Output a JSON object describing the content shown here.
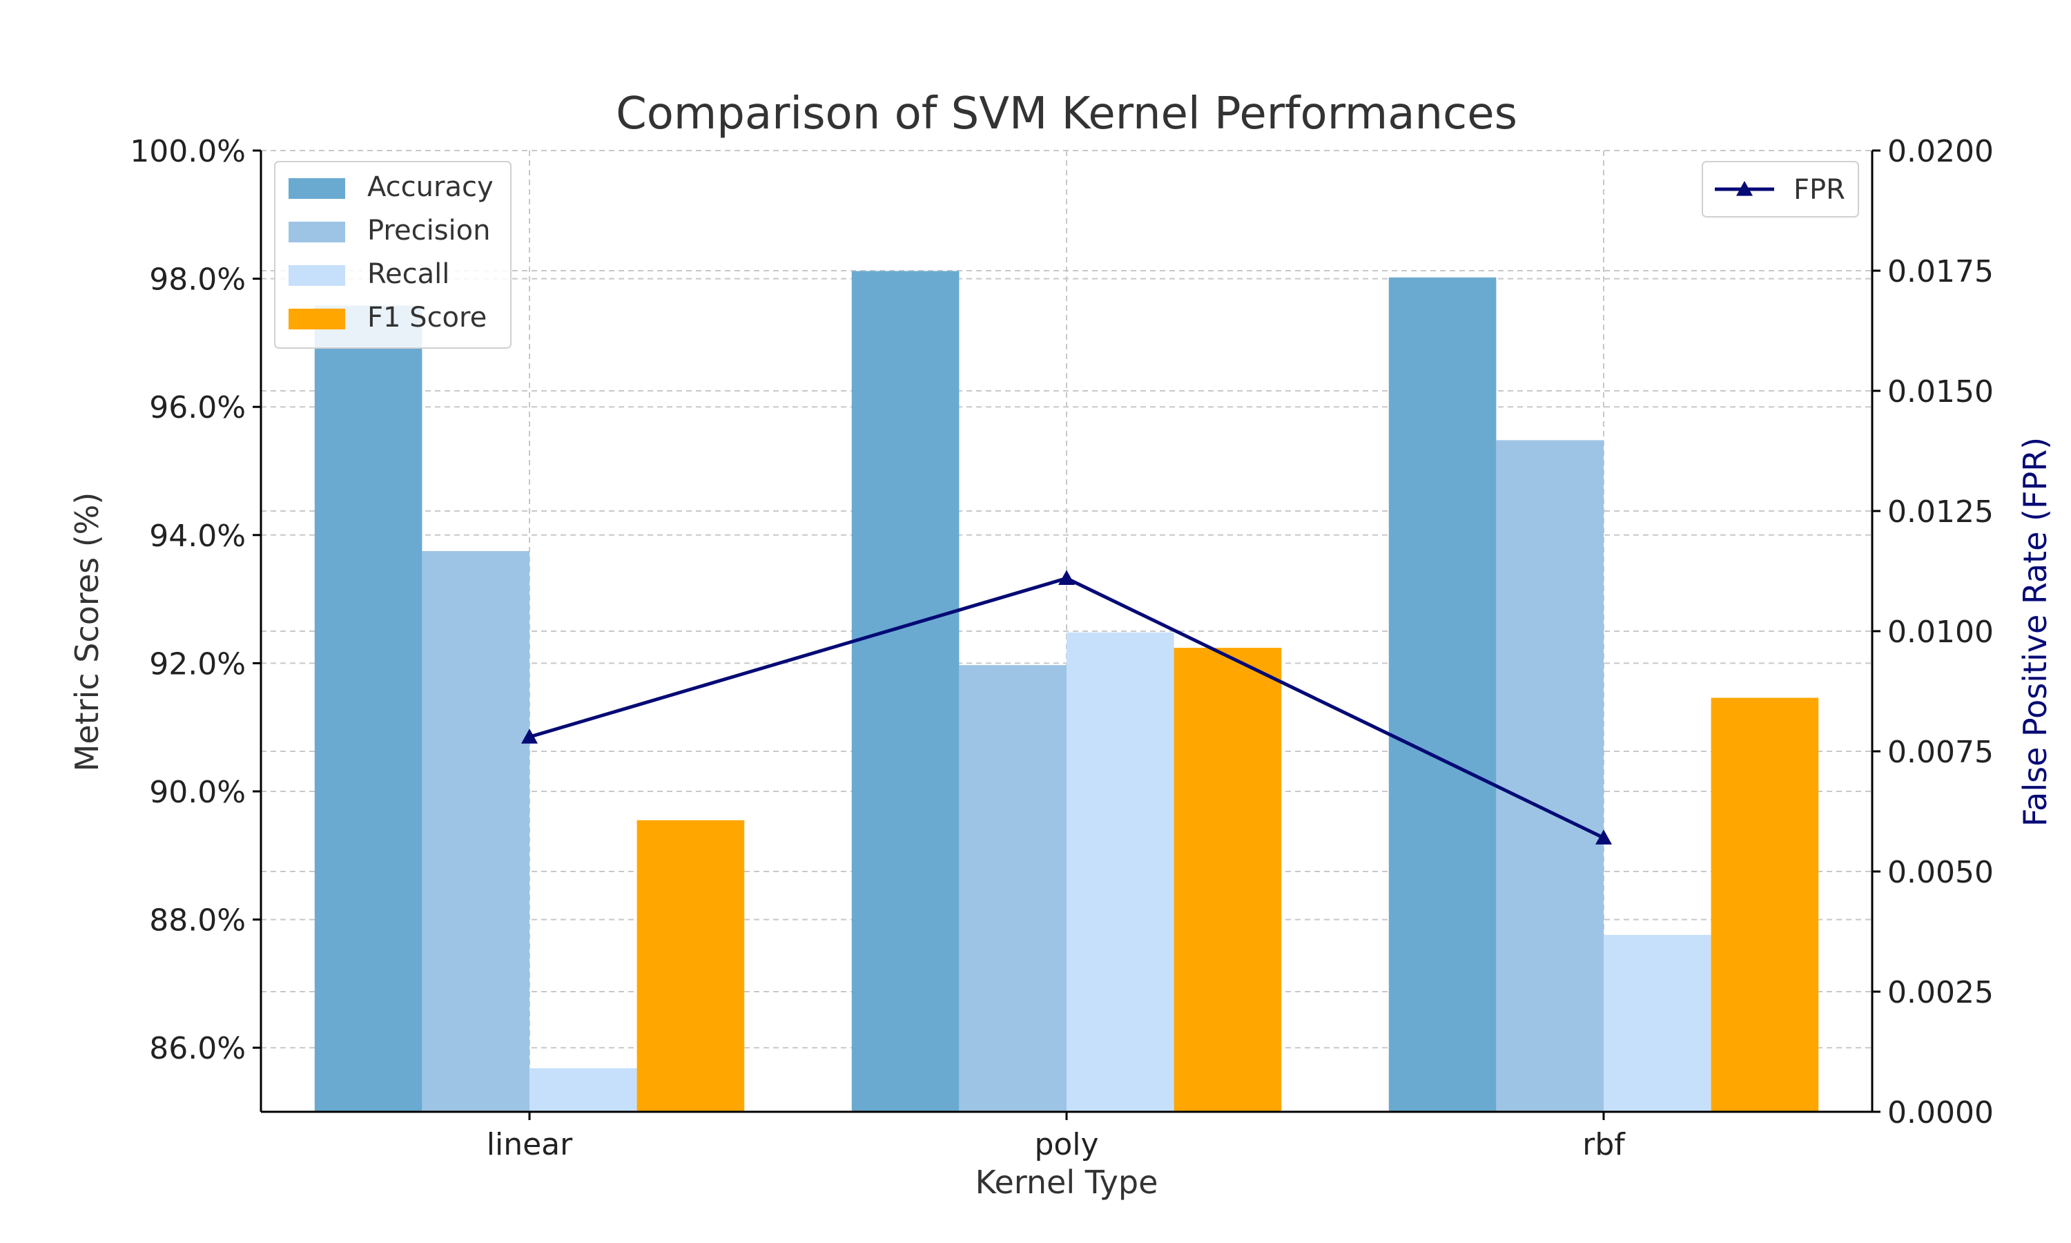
{
  "chart_data": {
    "type": "bar",
    "title": "Comparison of SVM Kernel Performances",
    "xlabel": "Kernel Type",
    "ylabel": "Metric Scores (%)",
    "y2label": "False Positive Rate (FPR)",
    "categories": [
      "linear",
      "poly",
      "rbf"
    ],
    "ylim": [
      85.0,
      100.0
    ],
    "yticks": [
      86.0,
      88.0,
      90.0,
      92.0,
      94.0,
      96.0,
      98.0,
      100.0
    ],
    "ytick_labels": [
      "86.0%",
      "88.0%",
      "90.0%",
      "92.0%",
      "94.0%",
      "96.0%",
      "98.0%",
      "100.0%"
    ],
    "y2lim": [
      0.0,
      0.02
    ],
    "y2ticks": [
      0.0,
      0.0025,
      0.005,
      0.0075,
      0.01,
      0.0125,
      0.015,
      0.0175,
      0.02
    ],
    "y2tick_labels": [
      "0.0000",
      "0.0025",
      "0.0050",
      "0.0075",
      "0.0100",
      "0.0125",
      "0.0150",
      "0.0175",
      "0.0200"
    ],
    "grid": true,
    "legend_bars": "top-left",
    "legend_line": "top-right",
    "series": [
      {
        "name": "Accuracy",
        "color": "#6aaad1",
        "values": [
          97.58,
          98.12,
          98.02
        ]
      },
      {
        "name": "Precision",
        "color": "#9dc4e4",
        "values": [
          93.75,
          91.97,
          95.48
        ]
      },
      {
        "name": "Recall",
        "color": "#c6e0fb",
        "values": [
          85.68,
          92.48,
          87.76
        ]
      },
      {
        "name": "F1 Score",
        "color": "#ffa600",
        "values": [
          89.55,
          92.24,
          91.46
        ]
      }
    ],
    "line_series": {
      "name": "FPR",
      "color": "#050a75",
      "marker": "triangle",
      "values": [
        0.0078,
        0.0111,
        0.0057
      ]
    }
  }
}
